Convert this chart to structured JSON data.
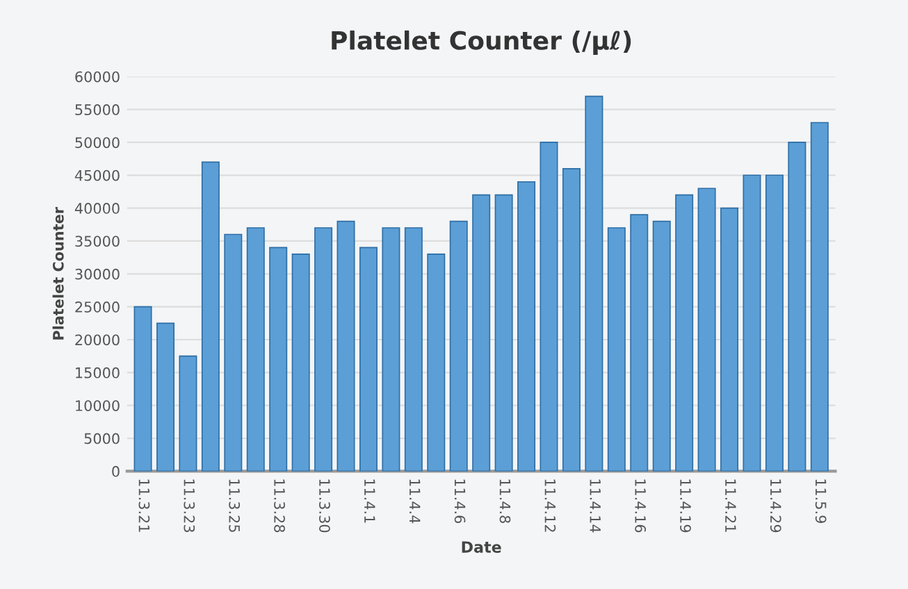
{
  "chart_data": {
    "type": "bar",
    "title": "Platelet Counter (/μℓ)",
    "xlabel": "Date",
    "ylabel": "Platelet Counter",
    "categories": [
      "11.3.21",
      null,
      "11.3.23",
      null,
      "11.3.25",
      null,
      "11.3.28",
      null,
      "11.3.30",
      null,
      "11.4.1",
      null,
      "11.4.4",
      null,
      "11.4.6",
      null,
      "11.4.8",
      null,
      "11.4.12",
      null,
      "11.4.14",
      null,
      "11.4.16",
      null,
      "11.4.19",
      null,
      "11.4.21",
      null,
      "11.4.29",
      null,
      "11.5.9"
    ],
    "values": [
      25000,
      22500,
      17500,
      47000,
      36000,
      37000,
      34000,
      33000,
      37000,
      38000,
      34000,
      37000,
      37000,
      33000,
      38000,
      42000,
      42000,
      44000,
      50000,
      46000,
      57000,
      37000,
      39000,
      38000,
      42000,
      43000,
      40000,
      45000,
      45000,
      50000,
      53000
    ],
    "color": "#5b9fd6",
    "ylim": [
      0,
      60000
    ],
    "yticks": [
      0,
      5000,
      10000,
      15000,
      20000,
      25000,
      30000,
      35000,
      40000,
      45000,
      50000,
      55000,
      60000
    ],
    "grid": "y",
    "legend": false
  }
}
